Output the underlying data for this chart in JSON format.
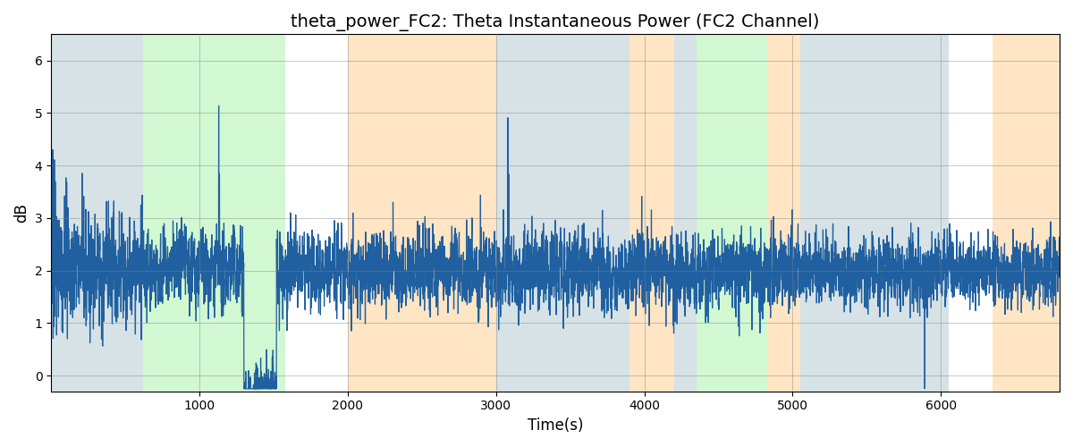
{
  "title": "theta_power_FC2: Theta Instantaneous Power (FC2 Channel)",
  "xlabel": "Time(s)",
  "ylabel": "dB",
  "xlim": [
    0,
    6800
  ],
  "ylim": [
    -0.3,
    6.5
  ],
  "line_color": "#2060A0",
  "line_width": 0.9,
  "bg_bands": [
    {
      "xmin": 0,
      "xmax": 620,
      "color": "#AEC6CF",
      "alpha": 0.5
    },
    {
      "xmin": 620,
      "xmax": 1580,
      "color": "#90EE90",
      "alpha": 0.4
    },
    {
      "xmin": 1580,
      "xmax": 2000,
      "color": "#FFFFFF",
      "alpha": 0.0
    },
    {
      "xmin": 2000,
      "xmax": 3000,
      "color": "#FFD59E",
      "alpha": 0.6
    },
    {
      "xmin": 3000,
      "xmax": 3900,
      "color": "#AEC6CF",
      "alpha": 0.5
    },
    {
      "xmin": 3900,
      "xmax": 4200,
      "color": "#FFD59E",
      "alpha": 0.6
    },
    {
      "xmin": 4200,
      "xmax": 4350,
      "color": "#AEC6CF",
      "alpha": 0.5
    },
    {
      "xmin": 4350,
      "xmax": 4830,
      "color": "#90EE90",
      "alpha": 0.4
    },
    {
      "xmin": 4830,
      "xmax": 5050,
      "color": "#FFD59E",
      "alpha": 0.6
    },
    {
      "xmin": 5050,
      "xmax": 6050,
      "color": "#AEC6CF",
      "alpha": 0.5
    },
    {
      "xmin": 6050,
      "xmax": 6350,
      "color": "#FFFFFF",
      "alpha": 0.0
    },
    {
      "xmin": 6350,
      "xmax": 6800,
      "color": "#FFD59E",
      "alpha": 0.6
    }
  ],
  "seed": 42,
  "n_points": 6800,
  "title_fontsize": 14,
  "tick_labelsize": 10,
  "axis_labelsize": 12,
  "figsize": [
    12.0,
    5.0
  ],
  "dpi": 100
}
